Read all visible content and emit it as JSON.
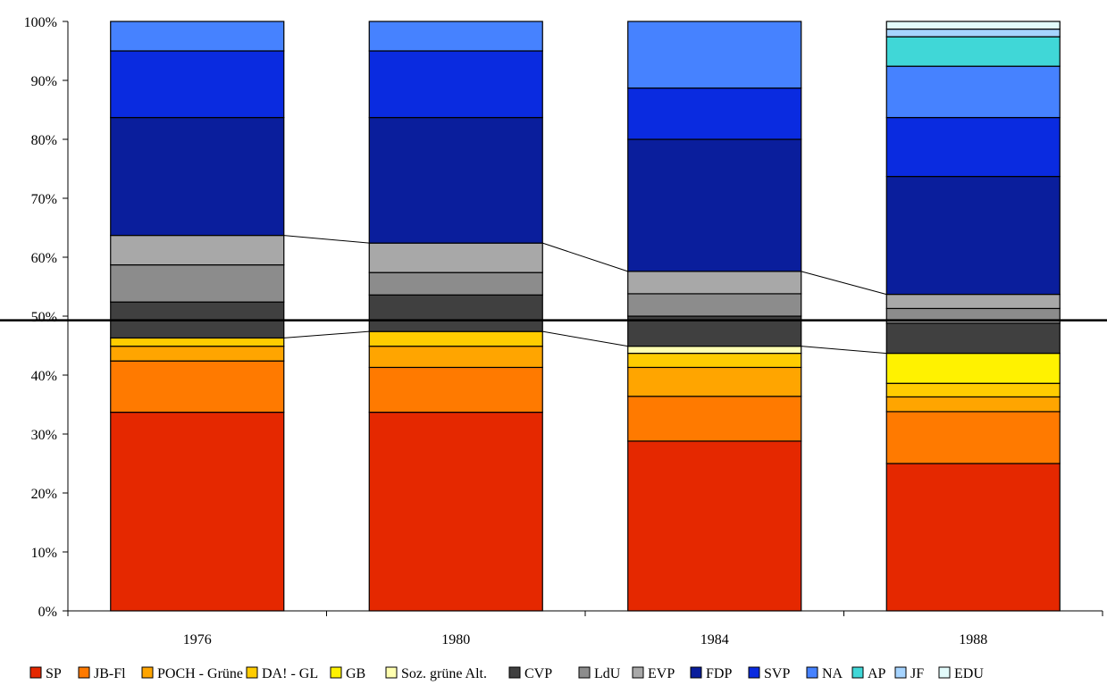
{
  "chart_data": {
    "type": "bar",
    "stacked": true,
    "categories": [
      "1976",
      "1980",
      "1984",
      "1988"
    ],
    "y_ticks": [
      "0%",
      "10%",
      "20%",
      "30%",
      "40%",
      "50%",
      "60%",
      "70%",
      "80%",
      "90%",
      "100%"
    ],
    "ylim": [
      0,
      100
    ],
    "grid": false,
    "legend_position": "bottom",
    "reference_line": 49.3,
    "series": [
      {
        "name": "SP",
        "color": "#E52800",
        "values": [
          33.7,
          33.7,
          28.8,
          25.0
        ]
      },
      {
        "name": "JB-Fl",
        "color": "#FF7A00",
        "values": [
          8.7,
          7.6,
          7.6,
          8.8
        ]
      },
      {
        "name": "POCH - Grüne",
        "color": "#FFA500",
        "values": [
          2.5,
          3.6,
          4.9,
          2.5
        ]
      },
      {
        "name": "DA! - GL",
        "color": "#FFCC00",
        "values": [
          1.4,
          2.5,
          2.4,
          2.3
        ]
      },
      {
        "name": "GB",
        "color": "#FFF200",
        "values": [
          0,
          0,
          0,
          5.1
        ]
      },
      {
        "name": "Soz. grüne Alt.",
        "color": "#FFFFB0",
        "values": [
          0,
          0,
          1.2,
          0
        ]
      },
      {
        "name": "CVP",
        "color": "#404040",
        "values": [
          6.1,
          6.2,
          5.1,
          5.1
        ]
      },
      {
        "name": "LdU",
        "color": "#8C8C8C",
        "values": [
          6.3,
          3.8,
          3.8,
          2.5
        ]
      },
      {
        "name": "EVP",
        "color": "#A8A8A8",
        "values": [
          5.0,
          5.0,
          3.8,
          2.4
        ]
      },
      {
        "name": "FDP",
        "color": "#0A1E9C",
        "values": [
          20.0,
          21.3,
          22.4,
          20.0
        ]
      },
      {
        "name": "SVP",
        "color": "#0A2BE0",
        "values": [
          11.3,
          11.3,
          8.7,
          10.0
        ]
      },
      {
        "name": "NA",
        "color": "#4682FF",
        "values": [
          5.0,
          5.0,
          11.3,
          8.7
        ]
      },
      {
        "name": "AP",
        "color": "#40D7D7",
        "values": [
          0,
          0,
          0,
          5.0
        ]
      },
      {
        "name": "JF",
        "color": "#A6D4FF",
        "values": [
          0,
          0,
          0,
          1.3
        ]
      },
      {
        "name": "EDU",
        "color": "#E2FBFB",
        "values": [
          0,
          0,
          0,
          1.3
        ]
      }
    ]
  }
}
